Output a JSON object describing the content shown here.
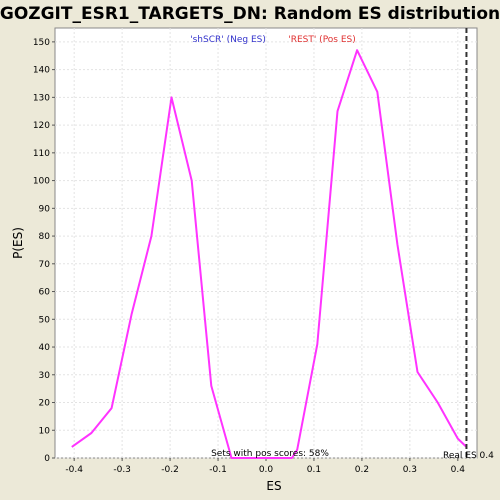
{
  "chart_data": {
    "type": "line",
    "title": "GOZGIT_ESR1_TARGETS_DN: Random ES distribution",
    "xlabel": "ES",
    "ylabel": "P(ES)",
    "xlim": [
      -0.44,
      0.44
    ],
    "ylim": [
      0,
      155
    ],
    "xticks": [
      -0.4,
      -0.3,
      -0.2,
      -0.1,
      0.0,
      0.1,
      0.2,
      0.3,
      0.4
    ],
    "xtick_labels": [
      "-0.4",
      "-0.3",
      "-0.2",
      "-0.1",
      "0.0",
      "0.1",
      "0.2",
      "0.3",
      "0.4"
    ],
    "yticks": [
      0,
      10,
      20,
      30,
      40,
      50,
      60,
      70,
      80,
      90,
      100,
      110,
      120,
      130,
      140,
      150
    ],
    "ytick_labels": [
      "0",
      "10",
      "20",
      "30",
      "40",
      "50",
      "60",
      "70",
      "80",
      "90",
      "100",
      "110",
      "120",
      "130",
      "140",
      "150"
    ],
    "grid": true,
    "legend_position": "top-center",
    "legend": [
      {
        "label": "'shSCR' (Neg ES)",
        "color": "#3333cc"
      },
      {
        "label": "'REST' (Pos ES)",
        "color": "#e03030"
      }
    ],
    "series": [
      {
        "color": "#ff33ff",
        "x": [
          -0.405,
          -0.364,
          -0.322,
          -0.28,
          -0.239,
          -0.197,
          -0.155,
          -0.114,
          -0.072,
          -0.03,
          0.012,
          0.054,
          0.065,
          0.107,
          0.149,
          0.19,
          0.232,
          0.274,
          0.316,
          0.358,
          0.4,
          0.418
        ],
        "y": [
          4,
          9,
          18,
          52,
          80,
          130,
          100,
          26,
          0,
          0,
          0,
          0,
          3,
          41,
          125,
          147,
          132,
          77,
          31,
          20,
          7,
          4
        ]
      }
    ],
    "real_es_line": {
      "x": 0.418,
      "color": "#333333",
      "style": "dashed"
    },
    "annotations": {
      "pos_scores": "Sets with pos scores: 58%",
      "real_es": "Real ES 0.4"
    },
    "plot_background": "#ffffff",
    "grid_color": "#e3e3e3"
  }
}
